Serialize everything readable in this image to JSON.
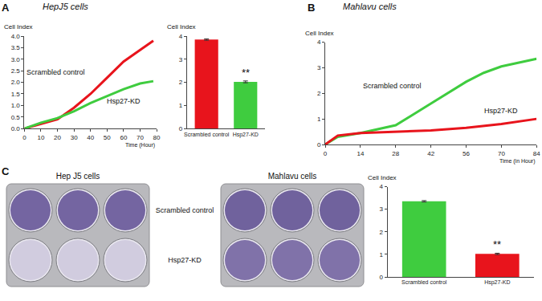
{
  "panel_labels": [
    "A",
    "B",
    "C"
  ],
  "chart_data": [
    {
      "type": "line",
      "title": "HepJ5 cells",
      "y_label": "Cell Index",
      "x_label": "Time (Hour)",
      "x": [
        0,
        10,
        20,
        30,
        40,
        50,
        60,
        70,
        78
      ],
      "series": [
        {
          "name": "Scrambled control",
          "color": "#e8141c",
          "values": [
            0,
            0.2,
            0.4,
            0.9,
            1.5,
            2.2,
            2.9,
            3.4,
            3.8
          ]
        },
        {
          "name": "Hsp27-KD",
          "color": "#3fcc3f",
          "values": [
            0,
            0.25,
            0.45,
            0.75,
            1.1,
            1.4,
            1.7,
            1.95,
            2.05
          ]
        }
      ],
      "xlim": [
        0,
        80
      ],
      "xticks": [
        0,
        10,
        20,
        30,
        40,
        50,
        60,
        70,
        80
      ],
      "ylim": [
        0,
        4
      ],
      "yticks": [
        {
          "value": 0,
          "label": "0.0"
        },
        0.5,
        {
          "value": 1,
          "label": "1.0"
        },
        1.5,
        {
          "value": 2,
          "label": "2.0"
        },
        2.5,
        {
          "value": 3,
          "label": "3.0"
        },
        3.5,
        {
          "value": 4,
          "label": "4.0"
        }
      ],
      "grid": false
    },
    {
      "type": "bar",
      "y_label": "Cell Index",
      "categories": [
        "Scrambled control",
        "Hsp27-KD"
      ],
      "values": [
        3.85,
        2.02
      ],
      "errors": [
        0.03,
        0.04
      ],
      "colors": [
        "#e8141c",
        "#3fcc3f"
      ],
      "ylim": [
        0,
        4
      ],
      "yticks": [
        0,
        1,
        2,
        3,
        4
      ],
      "annotations": [
        {
          "text": "**",
          "category": "Hsp27-KD"
        }
      ],
      "grid": false
    },
    {
      "type": "line",
      "title": "Mahlavu cells",
      "y_label": "Cell Index",
      "x_label": "Time (in Hour)",
      "x": [
        0,
        5,
        14,
        28,
        42,
        56,
        63,
        70,
        84
      ],
      "series": [
        {
          "name": "Scrambled control",
          "color": "#3fcc3f",
          "values": [
            0,
            0.3,
            0.45,
            0.75,
            1.6,
            2.45,
            2.8,
            3.05,
            3.35
          ]
        },
        {
          "name": "Hsp27-KD",
          "color": "#e8141c",
          "values": [
            0,
            0.35,
            0.45,
            0.5,
            0.55,
            0.65,
            0.72,
            0.8,
            1.0
          ]
        }
      ],
      "xlim": [
        0,
        84
      ],
      "xticks": [
        0,
        14,
        28,
        42,
        56,
        70,
        84
      ],
      "ylim": [
        0,
        4
      ],
      "yticks": [
        0,
        1,
        2,
        3,
        4
      ],
      "grid": false
    },
    {
      "type": "bar",
      "y_label": "Cell Index",
      "categories": [
        "Scrambled control",
        "Hsp27-KD"
      ],
      "values": [
        3.35,
        1.02
      ],
      "errors": [
        0.03,
        0.03
      ],
      "colors": [
        "#3fcc3f",
        "#e8141c"
      ],
      "ylim": [
        0,
        4
      ],
      "yticks": [
        0,
        1,
        2,
        3,
        4
      ],
      "annotations": [
        {
          "text": "**",
          "category": "Hsp27-KD"
        }
      ],
      "grid": false
    }
  ],
  "plates": {
    "titles": [
      "Hep J5 cells",
      "Mahlavu cells"
    ],
    "row_labels": [
      "Scrambled control",
      "Hsp27-KD"
    ]
  }
}
